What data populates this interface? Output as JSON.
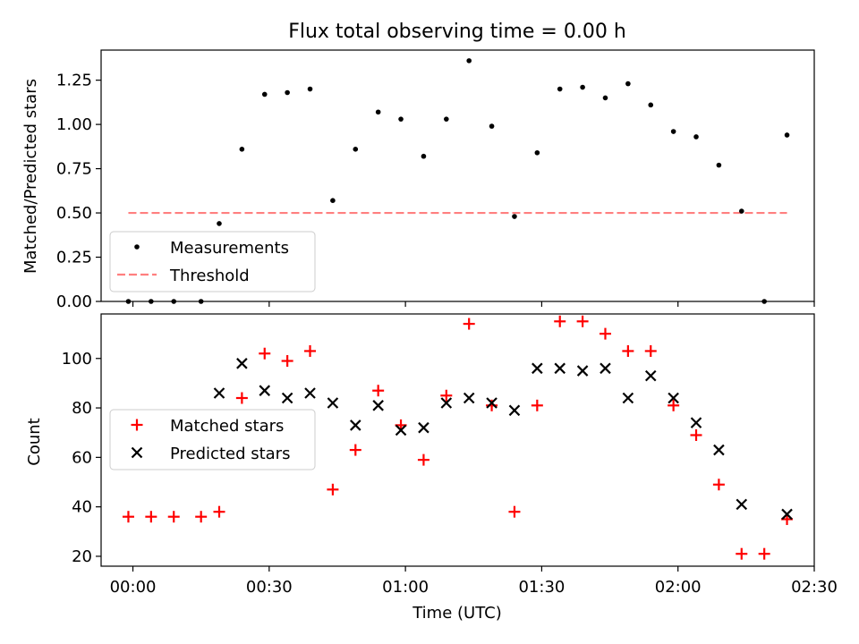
{
  "chart_data": [
    {
      "type": "scatter",
      "title": "Flux total observing time = 0.00 h",
      "xlabel": "",
      "ylabel": "Matched/Predicted stars",
      "xlim": [
        "23:53",
        "02:30"
      ],
      "ylim": [
        0,
        1.42
      ],
      "yticks": [
        0.0,
        0.25,
        0.5,
        0.75,
        1.0,
        1.25
      ],
      "ytick_labels": [
        "0.00",
        "0.25",
        "0.50",
        "0.75",
        "1.00",
        "1.25"
      ],
      "grid": false,
      "legend": {
        "placement": "lower-left",
        "entries": [
          "Measurements",
          "Threshold"
        ]
      },
      "series": [
        {
          "name": "Measurements",
          "marker": "dot",
          "color": "#000000",
          "points": [
            [
              "23:59",
              0.0
            ],
            [
              "00:04",
              0.0
            ],
            [
              "00:09",
              0.0
            ],
            [
              "00:15",
              0.0
            ],
            [
              "00:19",
              0.44
            ],
            [
              "00:24",
              0.86
            ],
            [
              "00:29",
              1.17
            ],
            [
              "00:34",
              1.18
            ],
            [
              "00:39",
              1.2
            ],
            [
              "00:44",
              0.57
            ],
            [
              "00:49",
              0.86
            ],
            [
              "00:54",
              1.07
            ],
            [
              "00:59",
              1.03
            ],
            [
              "01:04",
              0.82
            ],
            [
              "01:09",
              1.03
            ],
            [
              "01:14",
              1.36
            ],
            [
              "01:19",
              0.99
            ],
            [
              "01:24",
              0.48
            ],
            [
              "01:29",
              0.84
            ],
            [
              "01:34",
              1.2
            ],
            [
              "01:39",
              1.21
            ],
            [
              "01:44",
              1.15
            ],
            [
              "01:49",
              1.23
            ],
            [
              "01:54",
              1.11
            ],
            [
              "01:59",
              0.96
            ],
            [
              "02:04",
              0.93
            ],
            [
              "02:09",
              0.77
            ],
            [
              "02:14",
              0.51
            ],
            [
              "02:19",
              0.0
            ],
            [
              "02:24",
              0.94
            ]
          ]
        },
        {
          "name": "Threshold",
          "style": "dashed-line",
          "color": "#ff7f7f",
          "points": [
            [
              "23:59",
              0.5
            ],
            [
              "02:24",
              0.5
            ]
          ]
        }
      ]
    },
    {
      "type": "scatter",
      "title": "",
      "xlabel": "Time (UTC)",
      "ylabel": "Count",
      "xlim": [
        "23:53",
        "02:30"
      ],
      "ylim": [
        16,
        118
      ],
      "xticks": [
        "00:00",
        "00:30",
        "01:00",
        "01:30",
        "02:00",
        "02:30"
      ],
      "yticks": [
        20,
        40,
        60,
        80,
        100
      ],
      "grid": false,
      "legend": {
        "placement": "center-left",
        "entries": [
          "Matched stars",
          "Predicted stars"
        ]
      },
      "series": [
        {
          "name": "Matched stars",
          "marker": "plus",
          "color": "#ff0000",
          "points": [
            [
              "23:59",
              36
            ],
            [
              "00:04",
              36
            ],
            [
              "00:09",
              36
            ],
            [
              "00:15",
              36
            ],
            [
              "00:19",
              38
            ],
            [
              "00:24",
              84
            ],
            [
              "00:29",
              102
            ],
            [
              "00:34",
              99
            ],
            [
              "00:39",
              103
            ],
            [
              "00:44",
              47
            ],
            [
              "00:49",
              63
            ],
            [
              "00:54",
              87
            ],
            [
              "00:59",
              73
            ],
            [
              "01:04",
              59
            ],
            [
              "01:09",
              85
            ],
            [
              "01:14",
              114
            ],
            [
              "01:19",
              81
            ],
            [
              "01:24",
              38
            ],
            [
              "01:29",
              81
            ],
            [
              "01:34",
              115
            ],
            [
              "01:39",
              115
            ],
            [
              "01:44",
              110
            ],
            [
              "01:49",
              103
            ],
            [
              "01:54",
              103
            ],
            [
              "01:59",
              81
            ],
            [
              "02:04",
              69
            ],
            [
              "02:09",
              49
            ],
            [
              "02:14",
              21
            ],
            [
              "02:19",
              21
            ],
            [
              "02:24",
              35
            ]
          ]
        },
        {
          "name": "Predicted stars",
          "marker": "x",
          "color": "#000000",
          "points": [
            [
              "00:19",
              86
            ],
            [
              "00:24",
              98
            ],
            [
              "00:29",
              87
            ],
            [
              "00:34",
              84
            ],
            [
              "00:39",
              86
            ],
            [
              "00:44",
              82
            ],
            [
              "00:49",
              73
            ],
            [
              "00:54",
              81
            ],
            [
              "00:59",
              71
            ],
            [
              "01:04",
              72
            ],
            [
              "01:09",
              82
            ],
            [
              "01:14",
              84
            ],
            [
              "01:19",
              82
            ],
            [
              "01:24",
              79
            ],
            [
              "01:29",
              96
            ],
            [
              "01:34",
              96
            ],
            [
              "01:39",
              95
            ],
            [
              "01:44",
              96
            ],
            [
              "01:49",
              84
            ],
            [
              "01:54",
              93
            ],
            [
              "01:59",
              84
            ],
            [
              "02:04",
              74
            ],
            [
              "02:09",
              63
            ],
            [
              "02:14",
              41
            ],
            [
              "02:24",
              37
            ]
          ]
        }
      ]
    }
  ]
}
